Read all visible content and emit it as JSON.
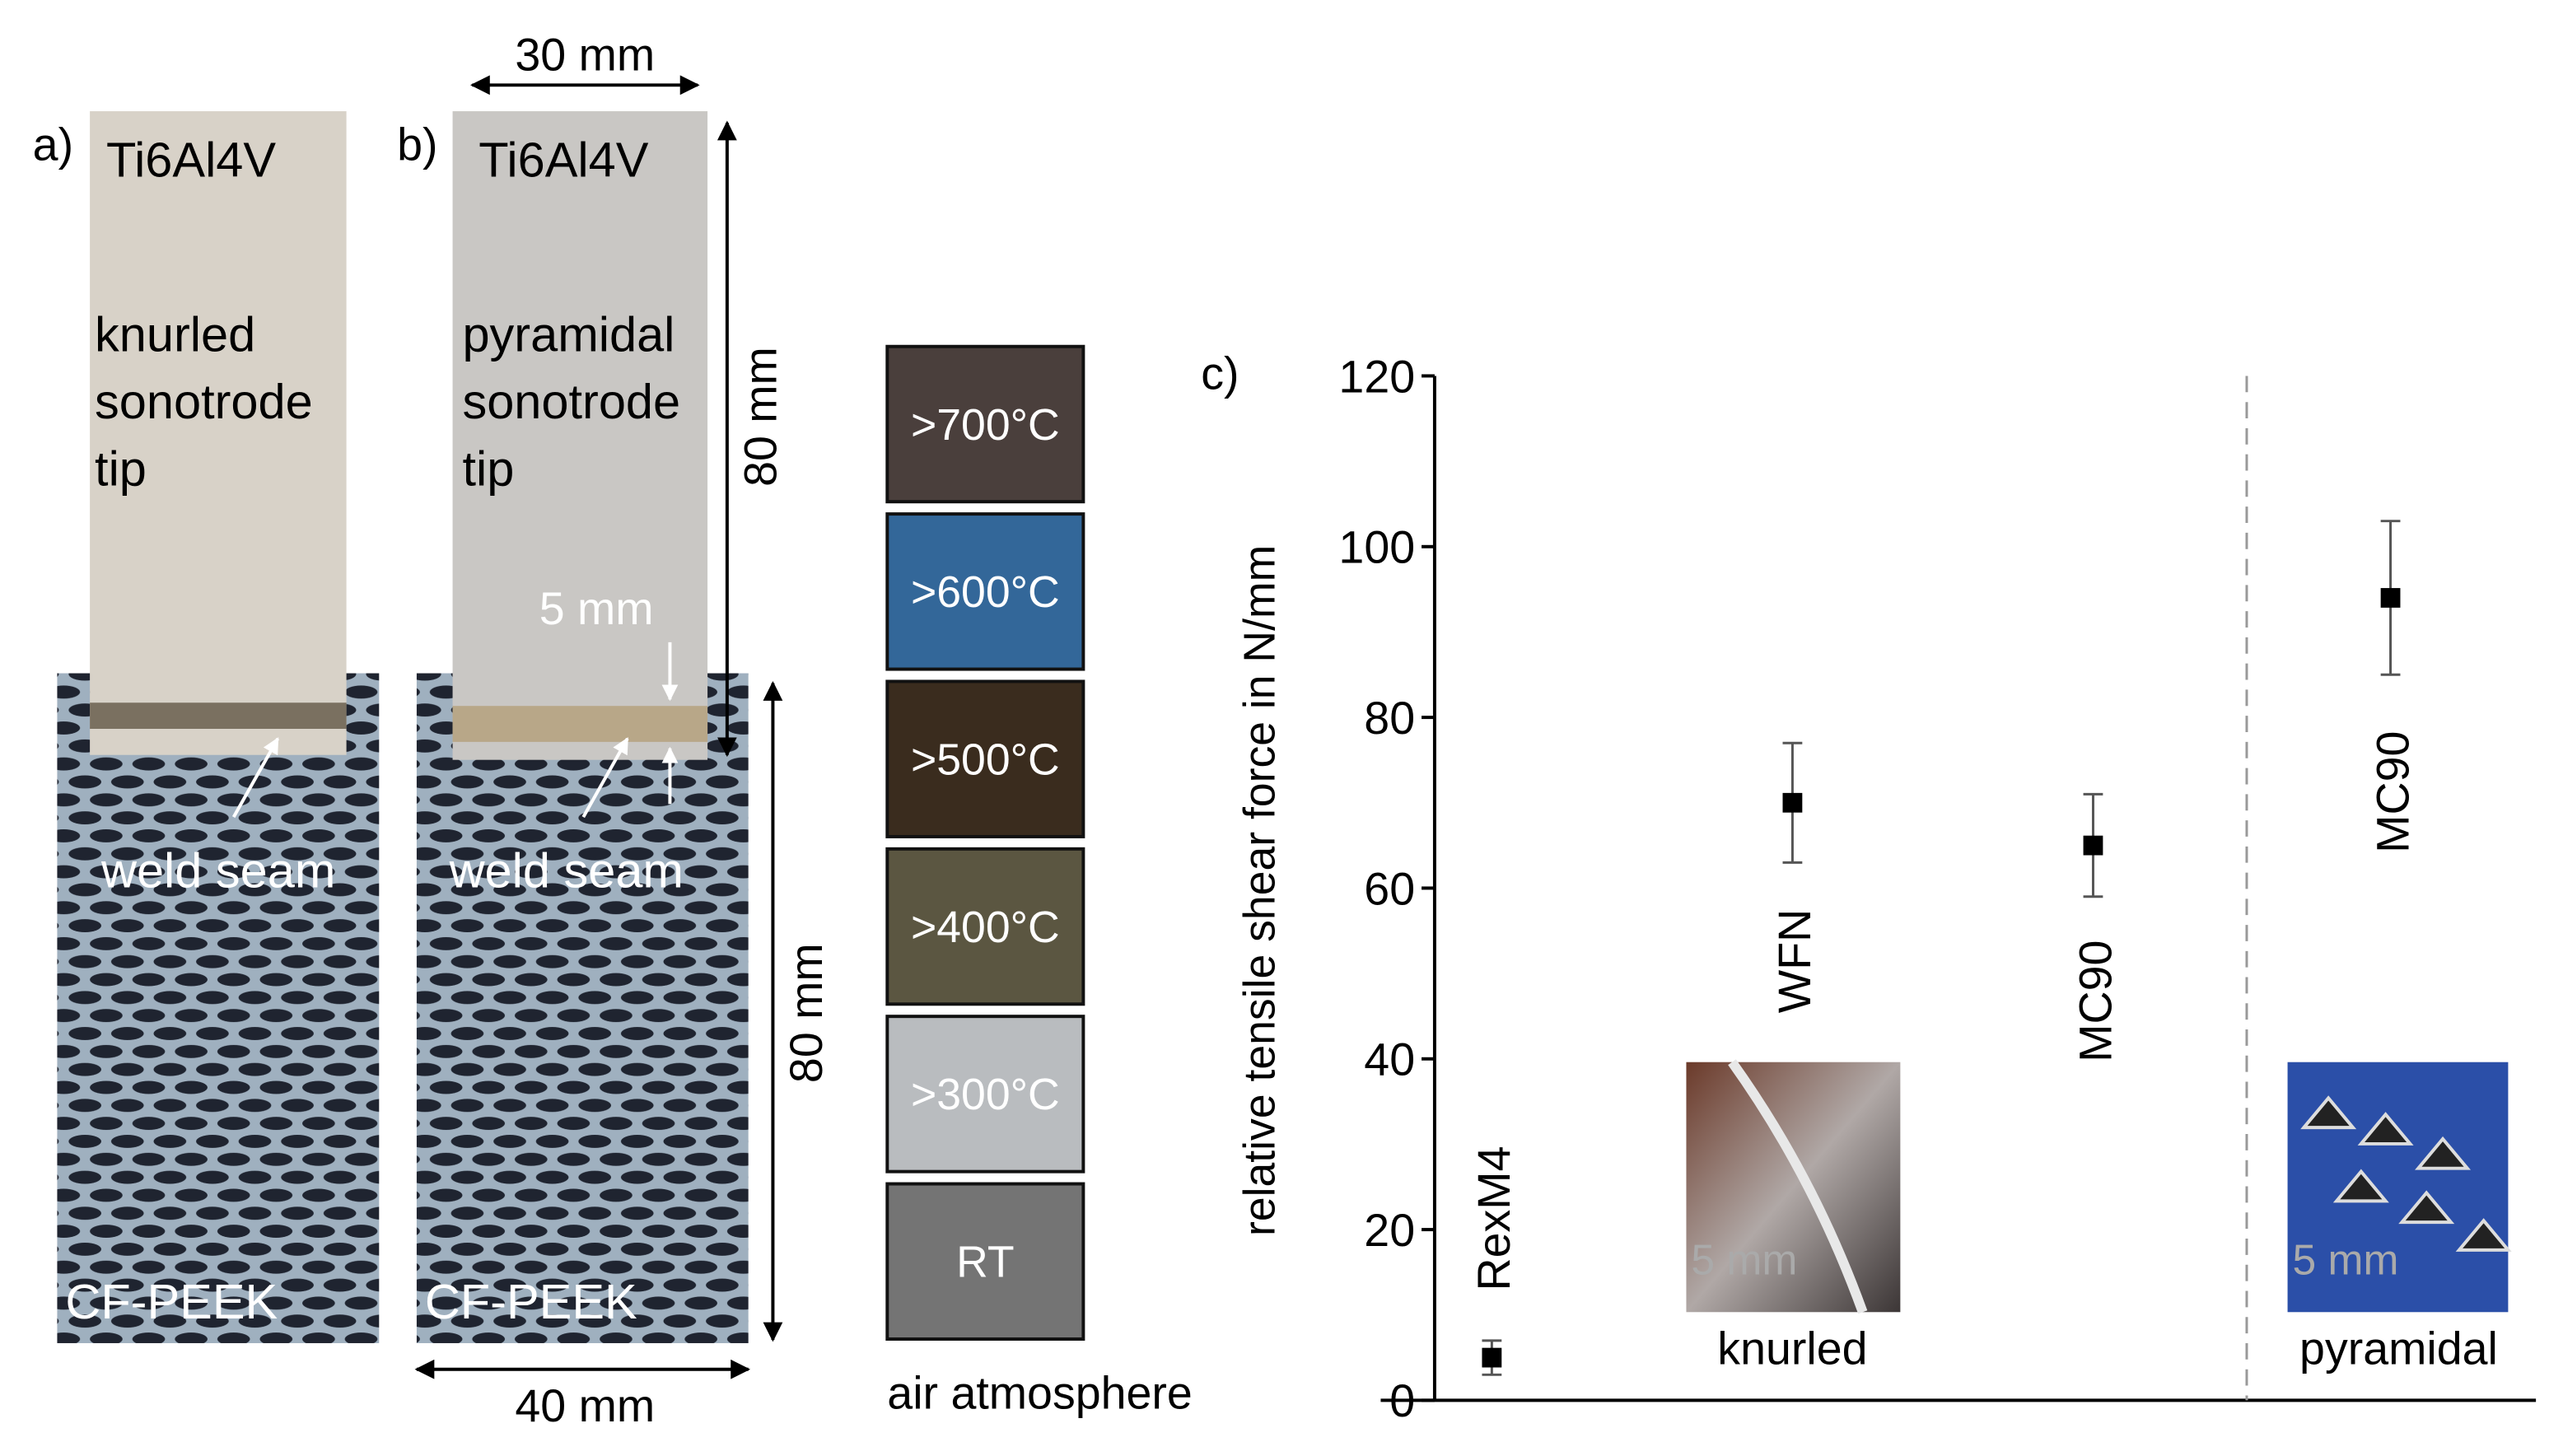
{
  "panel_a": {
    "label": "a)",
    "material": "Ti6Al4V",
    "tip_lines": [
      "knurled",
      "sonotrode",
      "tip"
    ],
    "seam": "weld seam",
    "base": "CF-PEEK"
  },
  "panel_b": {
    "label": "b)",
    "material": "Ti6Al4V",
    "tip_lines": [
      "pyramidal",
      "sonotrode",
      "tip"
    ],
    "seam": "weld seam",
    "base": "CF-PEEK",
    "seam_width": "5 mm",
    "top_width": "30 mm",
    "top_length": "80 mm",
    "base_length": "80 mm",
    "base_width": "40 mm"
  },
  "temperature_scale": {
    "items": [
      {
        "label": ">700°C",
        "color": "#4a3f3c"
      },
      {
        "label": ">600°C",
        "color": "#336799"
      },
      {
        "label": ">500°C",
        "color": "#3a2c1e"
      },
      {
        "label": ">400°C",
        "color": "#5b5641"
      },
      {
        "label": ">300°C",
        "color": "#b9bcbf"
      },
      {
        "label": "RT",
        "color": "#747474"
      }
    ],
    "caption": "air atmosphere"
  },
  "chart_data": {
    "type": "scatter",
    "panel_label": "c)",
    "y_label": "relative tensile shear force in N/mm",
    "categories": [
      "RexM4",
      "WFN",
      "MC90",
      "MC90"
    ],
    "values": [
      5,
      70,
      65,
      94
    ],
    "errors": [
      2,
      7,
      6,
      9
    ],
    "groups": [
      {
        "label": "knurled",
        "inset_label": "5 mm"
      },
      {
        "label": "pyramidal",
        "inset_label": "5 mm"
      }
    ],
    "color": "#000000",
    "ylim": [
      0,
      120
    ],
    "yticks": [
      0,
      20,
      40,
      60,
      80,
      100,
      120
    ]
  }
}
